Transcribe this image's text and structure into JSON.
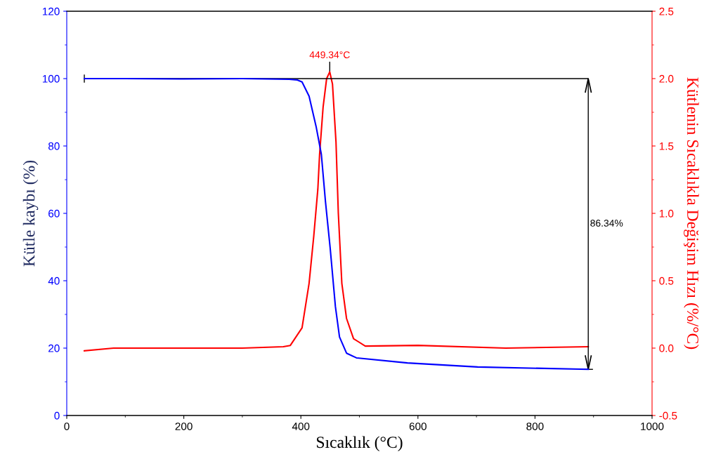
{
  "chart_data": {
    "type": "line",
    "xlabel": "Sıcaklık (°C)",
    "ylabel": "Kütle kaybı (%)",
    "y2label": "Kütlenin Sıcaklıkla Değişim Hızı (%/°C)",
    "xlim": [
      0,
      1000
    ],
    "xticks": [
      0,
      200,
      400,
      600,
      800,
      1000
    ],
    "ylim": [
      0,
      120
    ],
    "yticks": [
      0,
      20,
      40,
      60,
      80,
      100,
      120
    ],
    "y2lim": [
      -0.5,
      2.5
    ],
    "y2ticks": [
      {
        "value": -0.5,
        "label": "-0.5"
      },
      {
        "value": 0,
        "label": "0.0"
      },
      {
        "value": 0.5,
        "label": "0.5"
      },
      {
        "value": 1,
        "label": "1.0"
      },
      {
        "value": 1.5,
        "label": "1.5"
      },
      {
        "value": 2,
        "label": "2.0"
      },
      {
        "value": 2.5,
        "label": "2.5"
      }
    ],
    "grid": false,
    "marker": "none",
    "line_style": "solid",
    "series": [
      {
        "color": "#0000ff",
        "x": [
          30,
          100,
          200,
          300,
          380,
          394,
          402,
          414,
          426,
          435,
          442,
          450,
          459,
          466,
          478,
          495,
          582,
          702,
          891
        ],
        "values": [
          100,
          100,
          99.9,
          100,
          99.8,
          99.6,
          99.0,
          94.8,
          85.8,
          77.5,
          63.5,
          49.8,
          32.3,
          23.3,
          18.5,
          17.1,
          15.6,
          14.4,
          13.7
        ]
      },
      {
        "color": "#ff0000",
        "axis": "y2",
        "x": [
          30,
          80,
          200,
          300,
          370,
          382,
          402,
          414,
          422,
          429,
          432,
          438,
          444,
          449.34,
          454,
          460,
          464,
          470,
          478,
          490,
          510,
          600,
          750,
          891
        ],
        "values": [
          -0.02,
          0.0,
          0.0,
          0.0,
          0.01,
          0.02,
          0.15,
          0.48,
          0.83,
          1.18,
          1.44,
          1.79,
          2.0,
          2.05,
          1.96,
          1.53,
          1.0,
          0.48,
          0.22,
          0.07,
          0.015,
          0.02,
          0.0,
          0.01
        ]
      }
    ],
    "ref_lines": [
      {
        "axis": "y",
        "value": 100,
        "color": "#000000"
      },
      {
        "axis": "x",
        "value": 891,
        "color": "#000000"
      }
    ],
    "annotations": [
      "449.34°C",
      "86.34%"
    ]
  }
}
